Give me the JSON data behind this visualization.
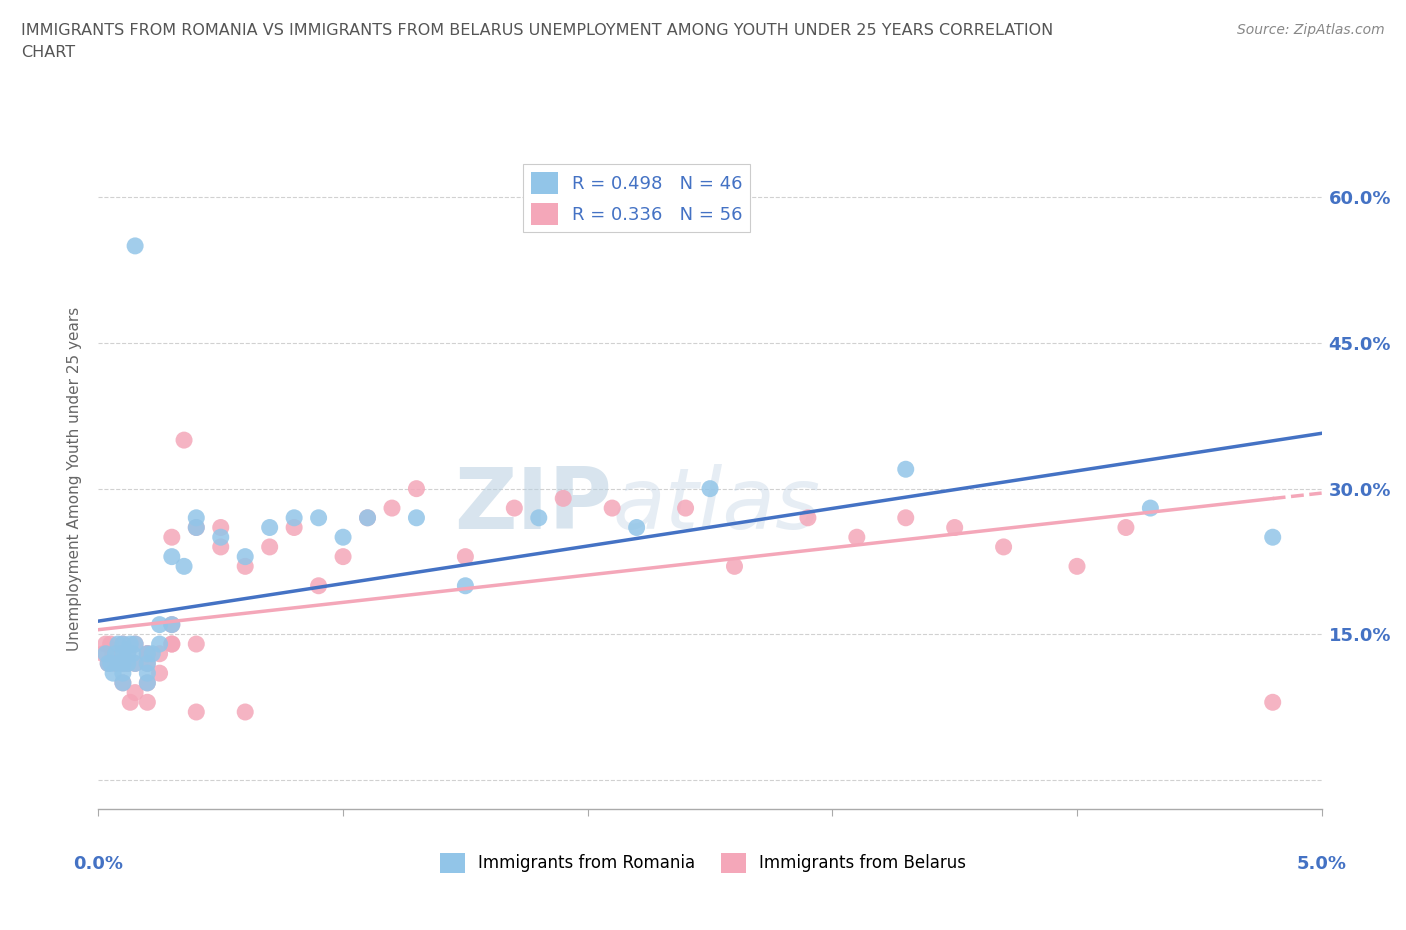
{
  "title_line1": "IMMIGRANTS FROM ROMANIA VS IMMIGRANTS FROM BELARUS UNEMPLOYMENT AMONG YOUTH UNDER 25 YEARS CORRELATION",
  "title_line2": "CHART",
  "source": "Source: ZipAtlas.com",
  "ylabel": "Unemployment Among Youth under 25 years",
  "xlim": [
    0.0,
    0.05
  ],
  "ylim": [
    -0.03,
    0.65
  ],
  "yticks": [
    0.0,
    0.15,
    0.3,
    0.45,
    0.6
  ],
  "ytick_labels": [
    "",
    "15.0%",
    "30.0%",
    "45.0%",
    "60.0%"
  ],
  "xtick_left": "0.0%",
  "xtick_right": "5.0%",
  "romania_color": "#92C5E8",
  "belarus_color": "#F4A7B9",
  "romania_R": 0.498,
  "romania_N": 46,
  "belarus_R": 0.336,
  "belarus_N": 56,
  "watermark_ZIP": "ZIP",
  "watermark_atlas": "atlas",
  "legend_romania": "Immigrants from Romania",
  "legend_belarus": "Immigrants from Belarus",
  "romania_x": [
    0.0003,
    0.0004,
    0.0005,
    0.0006,
    0.0007,
    0.0008,
    0.0008,
    0.001,
    0.001,
    0.001,
    0.001,
    0.001,
    0.0012,
    0.0012,
    0.0013,
    0.0014,
    0.0015,
    0.0015,
    0.0015,
    0.002,
    0.002,
    0.002,
    0.002,
    0.0022,
    0.0025,
    0.0025,
    0.003,
    0.003,
    0.0035,
    0.004,
    0.004,
    0.005,
    0.006,
    0.007,
    0.008,
    0.009,
    0.01,
    0.011,
    0.013,
    0.015,
    0.018,
    0.022,
    0.025,
    0.033,
    0.043,
    0.048
  ],
  "romania_y": [
    0.13,
    0.12,
    0.12,
    0.11,
    0.13,
    0.14,
    0.12,
    0.12,
    0.14,
    0.13,
    0.11,
    0.1,
    0.13,
    0.12,
    0.14,
    0.13,
    0.14,
    0.12,
    0.55,
    0.13,
    0.12,
    0.11,
    0.1,
    0.13,
    0.14,
    0.16,
    0.23,
    0.16,
    0.22,
    0.26,
    0.27,
    0.25,
    0.23,
    0.26,
    0.27,
    0.27,
    0.25,
    0.27,
    0.27,
    0.2,
    0.27,
    0.26,
    0.3,
    0.32,
    0.28,
    0.25
  ],
  "belarus_x": [
    0.0002,
    0.0003,
    0.0004,
    0.0005,
    0.0006,
    0.0007,
    0.0008,
    0.001,
    0.001,
    0.001,
    0.0012,
    0.0012,
    0.0013,
    0.0015,
    0.0015,
    0.0015,
    0.002,
    0.002,
    0.002,
    0.002,
    0.002,
    0.0025,
    0.0025,
    0.003,
    0.003,
    0.003,
    0.003,
    0.0035,
    0.004,
    0.004,
    0.004,
    0.005,
    0.005,
    0.006,
    0.006,
    0.007,
    0.008,
    0.009,
    0.01,
    0.011,
    0.012,
    0.013,
    0.015,
    0.017,
    0.019,
    0.021,
    0.024,
    0.026,
    0.029,
    0.031,
    0.033,
    0.035,
    0.037,
    0.04,
    0.042,
    0.048
  ],
  "belarus_y": [
    0.13,
    0.14,
    0.12,
    0.14,
    0.13,
    0.12,
    0.13,
    0.14,
    0.12,
    0.1,
    0.13,
    0.12,
    0.08,
    0.12,
    0.14,
    0.09,
    0.13,
    0.12,
    0.1,
    0.08,
    0.13,
    0.11,
    0.13,
    0.14,
    0.16,
    0.14,
    0.25,
    0.35,
    0.26,
    0.14,
    0.07,
    0.26,
    0.24,
    0.22,
    0.07,
    0.24,
    0.26,
    0.2,
    0.23,
    0.27,
    0.28,
    0.3,
    0.23,
    0.28,
    0.29,
    0.28,
    0.28,
    0.22,
    0.27,
    0.25,
    0.27,
    0.26,
    0.24,
    0.22,
    0.26,
    0.08
  ],
  "background_color": "#ffffff",
  "grid_color": "#cccccc",
  "title_color": "#555555",
  "axis_color": "#4472C4",
  "trend_romania_color": "#4472C4",
  "trend_belarus_color": "#F4A7B9"
}
